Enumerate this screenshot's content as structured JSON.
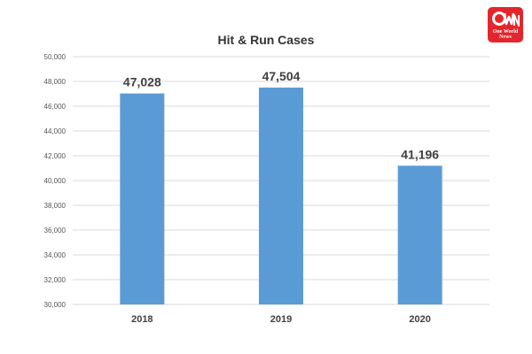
{
  "logo": {
    "line1": "One World",
    "line2": "News",
    "color": "#e3262d"
  },
  "chart_data": {
    "type": "bar",
    "title": "Hit & Run Cases",
    "categories": [
      "2018",
      "2019",
      "2020"
    ],
    "values": [
      47028,
      47504,
      41196
    ],
    "value_labels": [
      "47,028",
      "47,504",
      "41,196"
    ],
    "ylim": [
      30000,
      50000
    ],
    "yticks": [
      30000,
      32000,
      34000,
      36000,
      38000,
      40000,
      42000,
      44000,
      46000,
      48000,
      50000
    ],
    "ytick_labels": [
      "30,000",
      "32,000",
      "34,000",
      "36,000",
      "38,000",
      "40,000",
      "42,000",
      "44,000",
      "46,000",
      "48,000",
      "50,000"
    ],
    "grid": true,
    "bar_color": "#5b9bd5"
  }
}
